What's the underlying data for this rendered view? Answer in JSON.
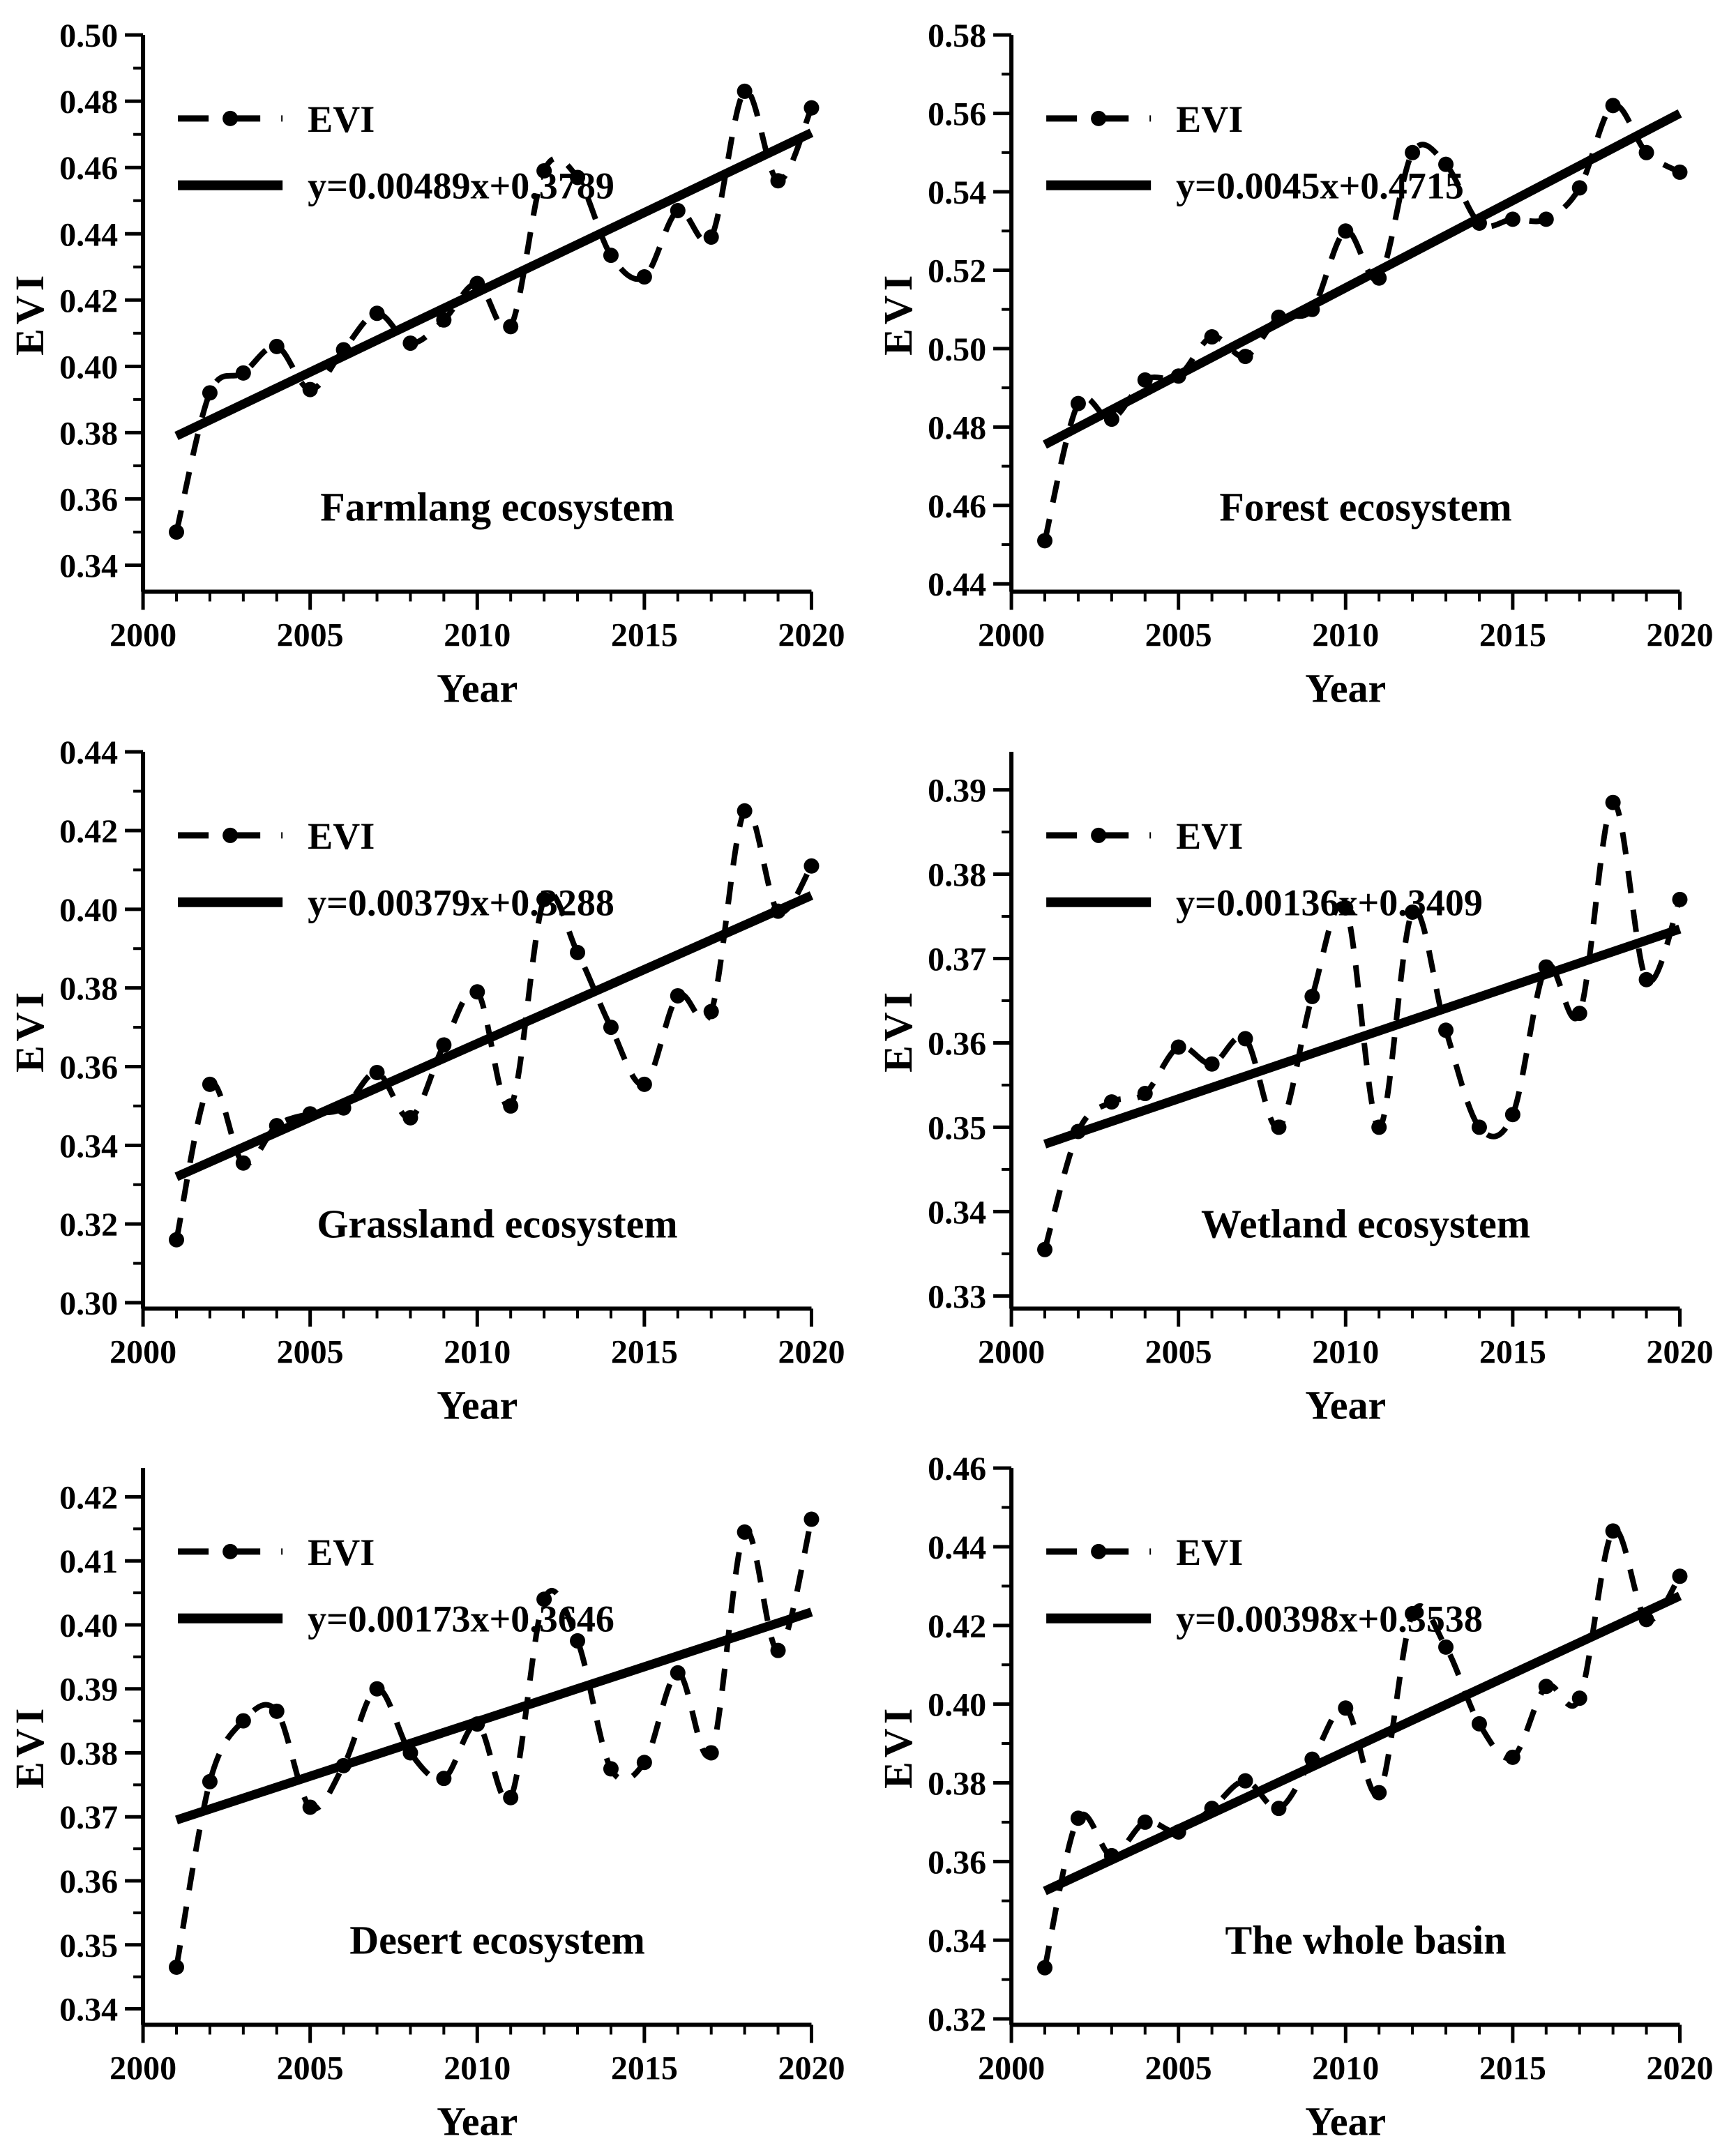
{
  "figure": {
    "description": "Six-panel EVI interannual trend figure (2001-2020)",
    "background_color": "#ffffff",
    "line_color": "#000000"
  },
  "chart_data": [
    {
      "type": "line",
      "title": "Farmlang ecosystem",
      "xlabel": "Year",
      "ylabel": "EVI",
      "legend": [
        "EVI",
        "y=0.00489x+0.3789"
      ],
      "equation": "y=0.00489x+0.3789",
      "legend_position": "top-left",
      "grid": false,
      "x": [
        2001,
        2002,
        2003,
        2004,
        2005,
        2006,
        2007,
        2008,
        2009,
        2010,
        2011,
        2012,
        2013,
        2014,
        2015,
        2016,
        2017,
        2018,
        2019,
        2020
      ],
      "series": [
        {
          "name": "EVI",
          "values": [
            0.35,
            0.392,
            0.398,
            0.406,
            0.393,
            0.405,
            0.416,
            0.407,
            0.414,
            0.425,
            0.412,
            0.459,
            0.457,
            0.4335,
            0.427,
            0.447,
            0.439,
            0.483,
            0.456,
            0.478
          ]
        }
      ],
      "trend_line": {
        "x_start": 2001,
        "x_end": 2020,
        "y_start": 0.379,
        "y_end": 0.4705
      },
      "xlim": [
        2000,
        2020
      ],
      "ylim": [
        0.332,
        0.5
      ],
      "xticks": [
        2000,
        2005,
        2010,
        2015,
        2020
      ],
      "yticks": [
        0.34,
        0.36,
        0.38,
        0.4,
        0.42,
        0.44,
        0.46,
        0.48,
        0.5
      ]
    },
    {
      "type": "line",
      "title": "Forest ecosystem",
      "xlabel": "Year",
      "ylabel": "EVI",
      "legend": [
        "EVI",
        "y=0.0045x+0.4715"
      ],
      "equation": "y=0.0045x+0.4715",
      "legend_position": "top-left",
      "grid": false,
      "x": [
        2001,
        2002,
        2003,
        2004,
        2005,
        2006,
        2007,
        2008,
        2009,
        2010,
        2011,
        2012,
        2013,
        2014,
        2015,
        2016,
        2017,
        2018,
        2019,
        2020
      ],
      "series": [
        {
          "name": "EVI",
          "values": [
            0.451,
            0.486,
            0.482,
            0.492,
            0.493,
            0.503,
            0.498,
            0.508,
            0.51,
            0.53,
            0.518,
            0.55,
            0.547,
            0.532,
            0.533,
            0.533,
            0.541,
            0.562,
            0.55,
            0.545
          ]
        }
      ],
      "trend_line": {
        "x_start": 2001,
        "x_end": 2020,
        "y_start": 0.4755,
        "y_end": 0.56
      },
      "xlim": [
        2000,
        2020
      ],
      "ylim": [
        0.438,
        0.58
      ],
      "xticks": [
        2000,
        2005,
        2010,
        2015,
        2020
      ],
      "yticks": [
        0.44,
        0.46,
        0.48,
        0.5,
        0.52,
        0.54,
        0.56,
        0.58
      ]
    },
    {
      "type": "line",
      "title": "Grassland ecosystem",
      "xlabel": "Year",
      "ylabel": "EVI",
      "legend": [
        "EVI",
        "y=0.00379x+0.3288"
      ],
      "equation": "y=0.00379x+0.3288",
      "legend_position": "top-left",
      "grid": false,
      "x": [
        2001,
        2002,
        2003,
        2004,
        2005,
        2006,
        2007,
        2008,
        2009,
        2010,
        2011,
        2012,
        2013,
        2014,
        2015,
        2016,
        2017,
        2018,
        2019,
        2020
      ],
      "series": [
        {
          "name": "EVI",
          "values": [
            0.316,
            0.3555,
            0.3355,
            0.345,
            0.348,
            0.3495,
            0.3585,
            0.347,
            0.3655,
            0.379,
            0.35,
            0.4025,
            0.389,
            0.37,
            0.3555,
            0.378,
            0.374,
            0.425,
            0.3995,
            0.411
          ]
        }
      ],
      "trend_line": {
        "x_start": 2001,
        "x_end": 2020,
        "y_start": 0.332,
        "y_end": 0.4035
      },
      "xlim": [
        2000,
        2020
      ],
      "ylim": [
        0.2985,
        0.44
      ],
      "xticks": [
        2000,
        2005,
        2010,
        2015,
        2020
      ],
      "yticks": [
        0.3,
        0.32,
        0.34,
        0.36,
        0.38,
        0.4,
        0.42,
        0.44
      ]
    },
    {
      "type": "line",
      "title": "Wetland ecosystem",
      "xlabel": "Year",
      "ylabel": "EVI",
      "legend": [
        "EVI",
        "y=0.00136x+0.3409"
      ],
      "equation": "y=0.00136x+0.3409",
      "legend_position": "top-left",
      "grid": false,
      "x": [
        2001,
        2002,
        2003,
        2004,
        2005,
        2006,
        2007,
        2008,
        2009,
        2010,
        2011,
        2012,
        2013,
        2014,
        2015,
        2016,
        2017,
        2018,
        2019,
        2020
      ],
      "series": [
        {
          "name": "EVI",
          "values": [
            0.3355,
            0.3495,
            0.353,
            0.354,
            0.3595,
            0.3575,
            0.3605,
            0.35,
            0.3655,
            0.376,
            0.35,
            0.3755,
            0.3615,
            0.35,
            0.3515,
            0.369,
            0.3635,
            0.3885,
            0.3675,
            0.377
          ]
        }
      ],
      "trend_line": {
        "x_start": 2001,
        "x_end": 2020,
        "y_start": 0.348,
        "y_end": 0.3735
      },
      "xlim": [
        2000,
        2020
      ],
      "ylim": [
        0.3285,
        0.3945
      ],
      "xticks": [
        2000,
        2005,
        2010,
        2015,
        2020
      ],
      "yticks": [
        0.33,
        0.34,
        0.35,
        0.36,
        0.37,
        0.38,
        0.39
      ]
    },
    {
      "type": "line",
      "title": "Desert ecosystem",
      "xlabel": "Year",
      "ylabel": "EVI",
      "legend": [
        "EVI",
        "y=0.00173x+0.3646"
      ],
      "equation": "y=0.00173x+0.3646",
      "legend_position": "top-left",
      "grid": false,
      "x": [
        2001,
        2002,
        2003,
        2004,
        2005,
        2006,
        2007,
        2008,
        2009,
        2010,
        2011,
        2012,
        2013,
        2014,
        2015,
        2016,
        2017,
        2018,
        2019,
        2020
      ],
      "series": [
        {
          "name": "EVI",
          "values": [
            0.3465,
            0.3755,
            0.385,
            0.3865,
            0.3715,
            0.378,
            0.39,
            0.38,
            0.376,
            0.3845,
            0.373,
            0.404,
            0.3975,
            0.3775,
            0.3785,
            0.3925,
            0.38,
            0.4145,
            0.396,
            0.4165
          ]
        }
      ],
      "trend_line": {
        "x_start": 2001,
        "x_end": 2020,
        "y_start": 0.3695,
        "y_end": 0.402
      },
      "xlim": [
        2000,
        2020
      ],
      "ylim": [
        0.3375,
        0.4245
      ],
      "xticks": [
        2000,
        2005,
        2010,
        2015,
        2020
      ],
      "yticks": [
        0.34,
        0.35,
        0.36,
        0.37,
        0.38,
        0.39,
        0.4,
        0.41,
        0.42
      ]
    },
    {
      "type": "line",
      "title": "The whole basin",
      "xlabel": "Year",
      "ylabel": "EVI",
      "legend": [
        "EVI",
        "y=0.00398x+0.3538"
      ],
      "equation": "y=0.00398x+0.3538",
      "legend_position": "top-left",
      "grid": false,
      "x": [
        2001,
        2002,
        2003,
        2004,
        2005,
        2006,
        2007,
        2008,
        2009,
        2010,
        2011,
        2012,
        2013,
        2014,
        2015,
        2016,
        2017,
        2018,
        2019,
        2020
      ],
      "series": [
        {
          "name": "EVI",
          "values": [
            0.333,
            0.371,
            0.3615,
            0.37,
            0.3675,
            0.3735,
            0.3805,
            0.3735,
            0.386,
            0.399,
            0.3775,
            0.423,
            0.4145,
            0.395,
            0.3865,
            0.4045,
            0.4015,
            0.444,
            0.4215,
            0.4325
          ]
        }
      ],
      "trend_line": {
        "x_start": 2001,
        "x_end": 2020,
        "y_start": 0.3525,
        "y_end": 0.4275
      },
      "xlim": [
        2000,
        2020
      ],
      "ylim": [
        0.3185,
        0.46
      ],
      "xticks": [
        2000,
        2005,
        2010,
        2015,
        2020
      ],
      "yticks": [
        0.32,
        0.34,
        0.36,
        0.38,
        0.4,
        0.42,
        0.44,
        0.46
      ]
    }
  ]
}
